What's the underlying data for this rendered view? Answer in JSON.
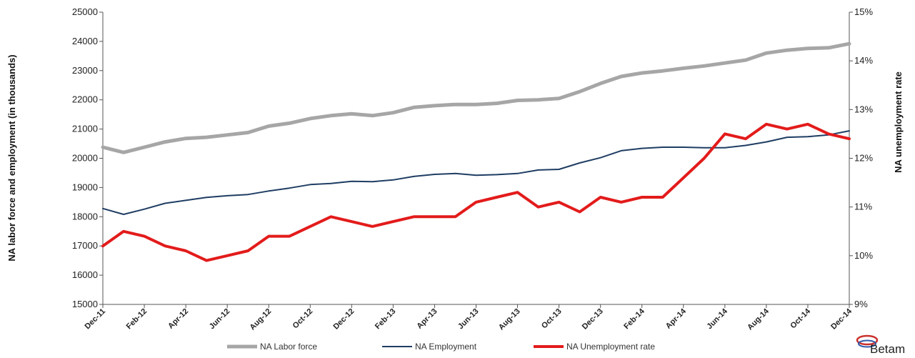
{
  "chart_data": {
    "type": "line",
    "ylabel": "NA labor force and employment (in thousands)",
    "y2label": "NA unemployment rate",
    "ylim": [
      15000,
      25000
    ],
    "y2lim": [
      9,
      15
    ],
    "y_ticks": [
      "15000",
      "16000",
      "17000",
      "18000",
      "19000",
      "20000",
      "21000",
      "22000",
      "23000",
      "24000",
      "25000"
    ],
    "y2_ticks": [
      "9%",
      "10%",
      "11%",
      "12%",
      "13%",
      "14%",
      "15%"
    ],
    "x_tick_labels": [
      "Dec-11",
      "Feb-12",
      "Apr-12",
      "Jun-12",
      "Aug-12",
      "Oct-12",
      "Dec-12",
      "Feb-13",
      "Apr-13",
      "Jun-13",
      "Aug-13",
      "Oct-13",
      "Dec-13",
      "Feb-14",
      "Apr-14",
      "Jun-14",
      "Aug-14",
      "Oct-14",
      "Dec-14"
    ],
    "x": [
      "Dec-11",
      "Jan-12",
      "Feb-12",
      "Mar-12",
      "Apr-12",
      "May-12",
      "Jun-12",
      "Jul-12",
      "Aug-12",
      "Sep-12",
      "Oct-12",
      "Nov-12",
      "Dec-12",
      "Jan-13",
      "Feb-13",
      "Mar-13",
      "Apr-13",
      "May-13",
      "Jun-13",
      "Jul-13",
      "Aug-13",
      "Sep-13",
      "Oct-13",
      "Nov-13",
      "Dec-13",
      "Jan-14",
      "Feb-14",
      "Mar-14",
      "Apr-14",
      "May-14",
      "Jun-14",
      "Jul-14",
      "Aug-14",
      "Sep-14",
      "Oct-14",
      "Nov-14",
      "Dec-14"
    ],
    "grid": false,
    "legend_placement": "bottom",
    "series": [
      {
        "name": "NA Labor force",
        "axis": "left",
        "color": "#a6a6a6",
        "values": [
          20380,
          20200,
          20380,
          20560,
          20680,
          20720,
          20800,
          20880,
          21100,
          21200,
          21360,
          21460,
          21520,
          21460,
          21560,
          21740,
          21800,
          21840,
          21840,
          21880,
          21980,
          22000,
          22050,
          22280,
          22560,
          22800,
          22920,
          22990,
          23080,
          23160,
          23260,
          23360,
          23600,
          23700,
          23760,
          23780,
          23920
        ]
      },
      {
        "name": "NA Employment",
        "axis": "left",
        "color": "#1f3d63",
        "values": [
          18280,
          18080,
          18260,
          18460,
          18560,
          18660,
          18720,
          18760,
          18880,
          18980,
          19100,
          19140,
          19210,
          19200,
          19260,
          19380,
          19450,
          19480,
          19420,
          19440,
          19480,
          19600,
          19620,
          19840,
          20020,
          20260,
          20340,
          20380,
          20380,
          20360,
          20360,
          20440,
          20560,
          20720,
          20740,
          20800,
          20940
        ]
      },
      {
        "name": "NA Unemployment rate",
        "axis": "right",
        "color": "#e31b1b",
        "values": [
          10.2,
          10.5,
          10.4,
          10.2,
          10.1,
          9.9,
          10.0,
          10.1,
          10.4,
          10.4,
          10.6,
          10.8,
          10.7,
          10.6,
          10.7,
          10.8,
          10.8,
          10.8,
          11.1,
          11.2,
          11.3,
          11.0,
          11.1,
          10.9,
          11.2,
          11.1,
          11.2,
          11.2,
          11.6,
          12.0,
          12.5,
          12.4,
          12.7,
          12.6,
          12.7,
          12.5,
          12.4
        ]
      }
    ]
  },
  "logo": {
    "text": "Betam"
  }
}
